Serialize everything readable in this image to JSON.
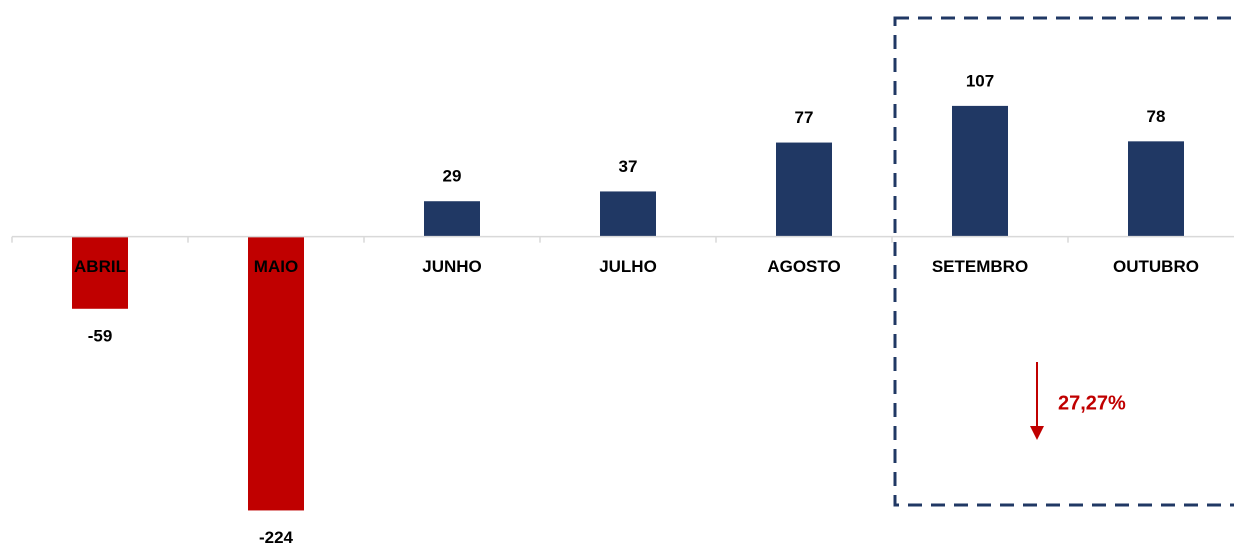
{
  "chart_data": {
    "type": "bar",
    "categories": [
      "ABRIL",
      "MAIO",
      "JUNHO",
      "JULHO",
      "AGOSTO",
      "SETEMBRO",
      "OUTUBRO"
    ],
    "values": [
      -59,
      -224,
      29,
      37,
      77,
      107,
      78
    ],
    "color": "#203864",
    "negative_color": "#c00000",
    "ylim": [
      -240,
      120
    ],
    "annotation": "27,27%"
  }
}
